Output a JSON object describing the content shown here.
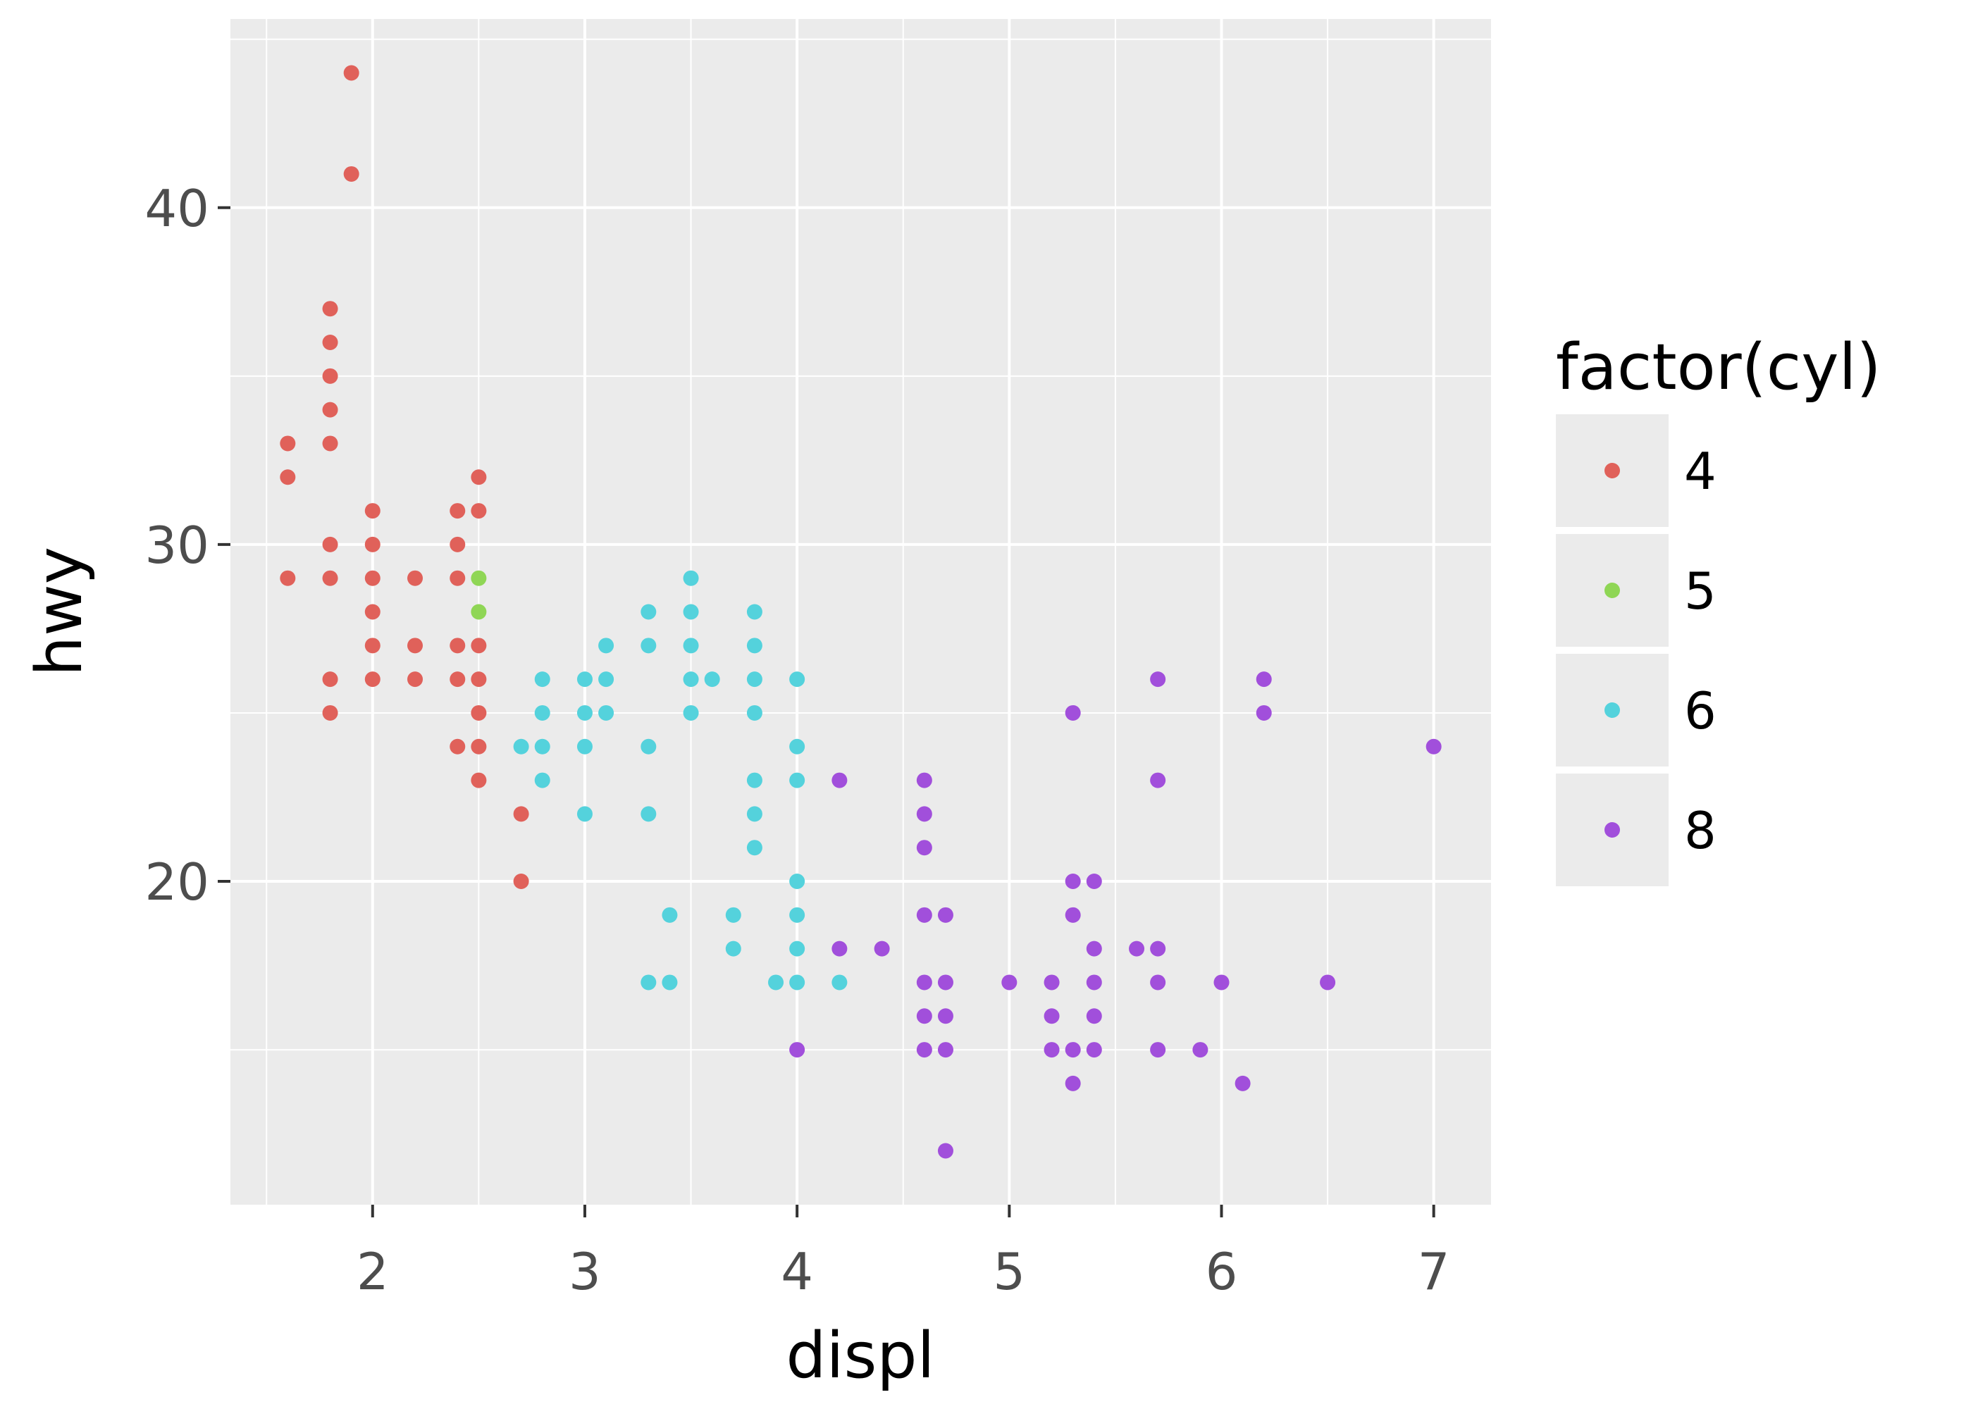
{
  "chart_data": {
    "type": "scatter",
    "xlabel": "displ",
    "ylabel": "hwy",
    "xlim": [
      1.33,
      7.27
    ],
    "ylim": [
      10.4,
      45.6
    ],
    "x_ticks": [
      2,
      3,
      4,
      5,
      6,
      7
    ],
    "y_ticks": [
      20,
      30,
      40
    ],
    "x_tick_labels": [
      "2",
      "3",
      "4",
      "5",
      "6",
      "7"
    ],
    "y_tick_labels": [
      "20",
      "30",
      "40"
    ],
    "grid": true,
    "legend": {
      "title": "factor(cyl)",
      "position": "right"
    },
    "series": [
      {
        "name": "4",
        "color": "#e0615a",
        "points": [
          [
            1.6,
            33
          ],
          [
            1.6,
            32
          ],
          [
            1.6,
            29
          ],
          [
            1.8,
            37
          ],
          [
            1.8,
            36
          ],
          [
            1.8,
            35
          ],
          [
            1.8,
            34
          ],
          [
            1.8,
            33
          ],
          [
            1.8,
            30
          ],
          [
            1.8,
            29
          ],
          [
            1.8,
            26
          ],
          [
            1.8,
            25
          ],
          [
            1.9,
            44
          ],
          [
            1.9,
            41
          ],
          [
            2.0,
            31
          ],
          [
            2.0,
            30
          ],
          [
            2.0,
            29
          ],
          [
            2.0,
            28
          ],
          [
            2.0,
            27
          ],
          [
            2.0,
            26
          ],
          [
            2.2,
            29
          ],
          [
            2.2,
            27
          ],
          [
            2.2,
            26
          ],
          [
            2.4,
            31
          ],
          [
            2.4,
            30
          ],
          [
            2.4,
            29
          ],
          [
            2.4,
            27
          ],
          [
            2.4,
            26
          ],
          [
            2.4,
            24
          ],
          [
            2.5,
            32
          ],
          [
            2.5,
            31
          ],
          [
            2.5,
            27
          ],
          [
            2.5,
            26
          ],
          [
            2.5,
            25
          ],
          [
            2.5,
            24
          ],
          [
            2.5,
            23
          ],
          [
            2.7,
            22
          ],
          [
            2.7,
            20
          ]
        ]
      },
      {
        "name": "5",
        "color": "#8fd655",
        "points": [
          [
            2.5,
            29
          ],
          [
            2.5,
            28
          ]
        ]
      },
      {
        "name": "6",
        "color": "#54d2dc",
        "points": [
          [
            2.7,
            24
          ],
          [
            2.8,
            26
          ],
          [
            2.8,
            25
          ],
          [
            2.8,
            24
          ],
          [
            2.8,
            23
          ],
          [
            3.0,
            26
          ],
          [
            3.0,
            25
          ],
          [
            3.0,
            24
          ],
          [
            3.0,
            22
          ],
          [
            3.1,
            27
          ],
          [
            3.1,
            26
          ],
          [
            3.1,
            25
          ],
          [
            3.3,
            28
          ],
          [
            3.3,
            27
          ],
          [
            3.3,
            24
          ],
          [
            3.3,
            22
          ],
          [
            3.3,
            17
          ],
          [
            3.4,
            19
          ],
          [
            3.4,
            17
          ],
          [
            3.5,
            29
          ],
          [
            3.5,
            28
          ],
          [
            3.5,
            27
          ],
          [
            3.5,
            26
          ],
          [
            3.5,
            25
          ],
          [
            3.6,
            26
          ],
          [
            3.7,
            19
          ],
          [
            3.7,
            18
          ],
          [
            3.8,
            28
          ],
          [
            3.8,
            27
          ],
          [
            3.8,
            26
          ],
          [
            3.8,
            25
          ],
          [
            3.8,
            23
          ],
          [
            3.8,
            22
          ],
          [
            3.8,
            21
          ],
          [
            3.9,
            17
          ],
          [
            4.0,
            26
          ],
          [
            4.0,
            24
          ],
          [
            4.0,
            23
          ],
          [
            4.0,
            20
          ],
          [
            4.0,
            19
          ],
          [
            4.0,
            18
          ],
          [
            4.0,
            17
          ],
          [
            4.2,
            17
          ]
        ]
      },
      {
        "name": "8",
        "color": "#a14fdb",
        "points": [
          [
            4.0,
            15
          ],
          [
            4.2,
            23
          ],
          [
            4.2,
            18
          ],
          [
            4.4,
            18
          ],
          [
            4.6,
            23
          ],
          [
            4.6,
            22
          ],
          [
            4.6,
            21
          ],
          [
            4.6,
            19
          ],
          [
            4.6,
            17
          ],
          [
            4.6,
            16
          ],
          [
            4.6,
            15
          ],
          [
            4.7,
            19
          ],
          [
            4.7,
            17
          ],
          [
            4.7,
            16
          ],
          [
            4.7,
            15
          ],
          [
            4.7,
            12
          ],
          [
            5.0,
            17
          ],
          [
            5.2,
            17
          ],
          [
            5.2,
            16
          ],
          [
            5.2,
            15
          ],
          [
            5.3,
            25
          ],
          [
            5.3,
            20
          ],
          [
            5.3,
            19
          ],
          [
            5.3,
            15
          ],
          [
            5.3,
            14
          ],
          [
            5.4,
            20
          ],
          [
            5.4,
            18
          ],
          [
            5.4,
            17
          ],
          [
            5.4,
            16
          ],
          [
            5.4,
            15
          ],
          [
            5.6,
            18
          ],
          [
            5.7,
            26
          ],
          [
            5.7,
            23
          ],
          [
            5.7,
            18
          ],
          [
            5.7,
            17
          ],
          [
            5.7,
            15
          ],
          [
            5.9,
            15
          ],
          [
            6.0,
            17
          ],
          [
            6.1,
            14
          ],
          [
            6.2,
            26
          ],
          [
            6.2,
            25
          ],
          [
            6.5,
            17
          ],
          [
            7.0,
            24
          ]
        ]
      }
    ]
  }
}
